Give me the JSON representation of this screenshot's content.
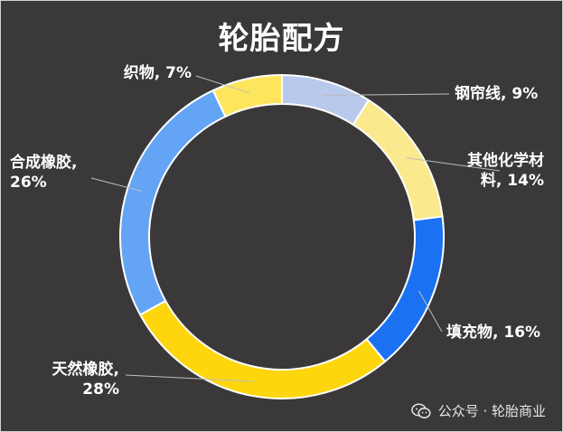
{
  "chart_data": {
    "type": "pie",
    "title": "轮胎配方",
    "donut": true,
    "slices": [
      {
        "label_lines": [
          "钢帘线, 9%"
        ],
        "value": 9,
        "color": "#b8c9ec"
      },
      {
        "label_lines": [
          "其他化学材",
          "料, 14%"
        ],
        "value": 14,
        "color": "#fbe98d"
      },
      {
        "label_lines": [
          "填充物, 16%"
        ],
        "value": 16,
        "color": "#1a71f2"
      },
      {
        "label_lines": [
          "天然橡胶,",
          "28%"
        ],
        "value": 28,
        "color": "#fdd60e"
      },
      {
        "label_lines": [
          "合成橡胶,",
          "26%"
        ],
        "value": 26,
        "color": "#63a4f4"
      },
      {
        "label_lines": [
          "织物, 7%"
        ],
        "value": 7,
        "color": "#fde65e"
      }
    ]
  },
  "watermark": {
    "text": "公众号 · 轮胎商业",
    "icon": "wechat-icon"
  }
}
